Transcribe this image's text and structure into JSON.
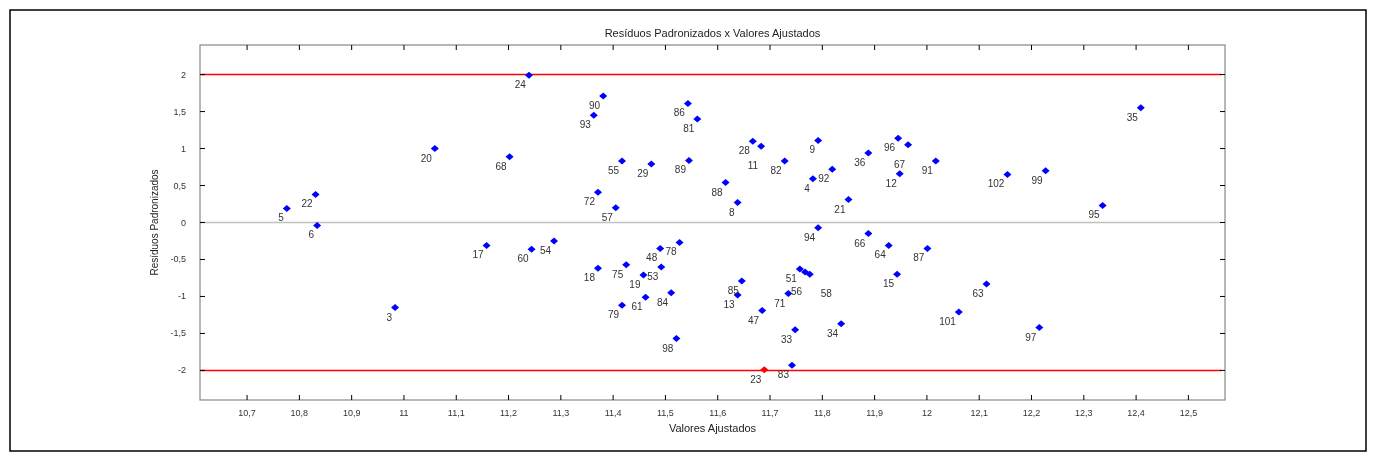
{
  "chart_data": {
    "type": "scatter",
    "title": "Resíduos Padronizados x Valores Ajustados",
    "xlabel": "Valores Ajustados",
    "ylabel": "Resíduos Padronizados",
    "x": [
      10.776,
      10.831,
      10.834,
      10.983,
      11.059,
      11.202,
      11.239,
      11.158,
      11.244,
      11.287,
      11.381,
      11.363,
      11.371,
      11.405,
      11.417,
      11.473,
      11.545,
      11.543,
      11.561,
      11.615,
      11.638,
      11.667,
      11.683,
      11.728,
      11.371,
      11.425,
      11.49,
      11.527,
      11.492,
      11.458,
      11.417,
      11.462,
      11.511,
      11.521,
      11.646,
      11.638,
      11.685,
      11.689,
      11.735,
      11.748,
      11.742,
      11.757,
      11.767,
      11.776,
      11.836,
      11.792,
      11.888,
      11.927,
      11.943,
      12.001,
      12.061,
      11.792,
      11.782,
      11.819,
      11.85,
      11.888,
      11.945,
      11.964,
      11.948,
      12.017,
      12.114,
      12.154,
      12.227,
      12.215,
      12.336,
      12.409
    ],
    "values": [
      0.19,
      0.38,
      -0.04,
      -1.15,
      1.0,
      0.89,
      1.99,
      -0.31,
      -0.36,
      -0.25,
      1.71,
      1.45,
      0.41,
      0.2,
      0.83,
      0.79,
      0.84,
      1.61,
      1.4,
      0.54,
      0.27,
      1.1,
      1.03,
      0.83,
      -0.62,
      -0.57,
      -0.35,
      -0.27,
      -0.6,
      -0.71,
      -1.12,
      -1.01,
      -0.95,
      -1.57,
      -0.79,
      -0.98,
      -1.19,
      -1.99,
      -0.96,
      -1.45,
      -1.93,
      -0.63,
      -0.67,
      -0.7,
      -1.37,
      -0.07,
      -0.15,
      -0.31,
      -0.7,
      -0.35,
      -1.21,
      1.11,
      0.59,
      0.72,
      0.31,
      0.94,
      1.14,
      1.05,
      0.66,
      0.83,
      -0.83,
      0.65,
      0.7,
      -1.42,
      0.23,
      1.55
    ],
    "colors": [
      "#0000ff",
      "#0000ff",
      "#0000ff",
      "#0000ff",
      "#0000ff",
      "#0000ff",
      "#0000ff",
      "#0000ff",
      "#0000ff",
      "#0000ff",
      "#0000ff",
      "#0000ff",
      "#0000ff",
      "#0000ff",
      "#0000ff",
      "#0000ff",
      "#0000ff",
      "#0000ff",
      "#0000ff",
      "#0000ff",
      "#0000ff",
      "#0000ff",
      "#0000ff",
      "#0000ff",
      "#0000ff",
      "#0000ff",
      "#0000ff",
      "#0000ff",
      "#0000ff",
      "#0000ff",
      "#0000ff",
      "#0000ff",
      "#0000ff",
      "#0000ff",
      "#0000ff",
      "#0000ff",
      "#0000ff",
      "#ff0000",
      "#0000ff",
      "#0000ff",
      "#0000ff",
      "#0000ff",
      "#0000ff",
      "#0000ff",
      "#0000ff",
      "#0000ff",
      "#0000ff",
      "#0000ff",
      "#0000ff",
      "#0000ff",
      "#0000ff",
      "#0000ff",
      "#0000ff",
      "#0000ff",
      "#0000ff",
      "#0000ff",
      "#0000ff",
      "#0000ff",
      "#0000ff",
      "#0000ff",
      "#0000ff",
      "#0000ff",
      "#0000ff",
      "#0000ff",
      "#0000ff",
      "#0000ff"
    ],
    "annotations": [
      {
        "text": "5",
        "x": 10.776,
        "y": 0.19
      },
      {
        "text": "22",
        "x": 10.831,
        "y": 0.38
      },
      {
        "text": "6",
        "x": 10.834,
        "y": -0.04
      },
      {
        "text": "3",
        "x": 10.983,
        "y": -1.15
      },
      {
        "text": "20",
        "x": 11.059,
        "y": 1.0
      },
      {
        "text": "68",
        "x": 11.202,
        "y": 0.89
      },
      {
        "text": "24",
        "x": 11.239,
        "y": 1.99
      },
      {
        "text": "17",
        "x": 11.158,
        "y": -0.31
      },
      {
        "text": "60",
        "x": 11.244,
        "y": -0.36
      },
      {
        "text": "54",
        "x": 11.287,
        "y": -0.25
      },
      {
        "text": "90",
        "x": 11.381,
        "y": 1.71
      },
      {
        "text": "93",
        "x": 11.363,
        "y": 1.45
      },
      {
        "text": "72",
        "x": 11.371,
        "y": 0.41
      },
      {
        "text": "57",
        "x": 11.405,
        "y": 0.2
      },
      {
        "text": "55",
        "x": 11.417,
        "y": 0.83
      },
      {
        "text": "29",
        "x": 11.473,
        "y": 0.79
      },
      {
        "text": "89",
        "x": 11.545,
        "y": 0.84
      },
      {
        "text": "86",
        "x": 11.543,
        "y": 1.61
      },
      {
        "text": "81",
        "x": 11.561,
        "y": 1.4
      },
      {
        "text": "88",
        "x": 11.615,
        "y": 0.54
      },
      {
        "text": "8",
        "x": 11.638,
        "y": 0.27
      },
      {
        "text": "28",
        "x": 11.667,
        "y": 1.1
      },
      {
        "text": "11",
        "x": 11.683,
        "y": 1.03
      },
      {
        "text": "82",
        "x": 11.728,
        "y": 0.83
      },
      {
        "text": "18",
        "x": 11.371,
        "y": -0.62
      },
      {
        "text": "75",
        "x": 11.425,
        "y": -0.57
      },
      {
        "text": "48",
        "x": 11.49,
        "y": -0.35
      },
      {
        "text": "78",
        "x": 11.527,
        "y": -0.27
      },
      {
        "text": "53",
        "x": 11.492,
        "y": -0.6
      },
      {
        "text": "19",
        "x": 11.458,
        "y": -0.71
      },
      {
        "text": "79",
        "x": 11.417,
        "y": -1.12
      },
      {
        "text": "61",
        "x": 11.462,
        "y": -1.01
      },
      {
        "text": "84",
        "x": 11.511,
        "y": -0.95
      },
      {
        "text": "98",
        "x": 11.521,
        "y": -1.57
      },
      {
        "text": "85",
        "x": 11.646,
        "y": -0.79
      },
      {
        "text": "13",
        "x": 11.638,
        "y": -0.98
      },
      {
        "text": "47",
        "x": 11.685,
        "y": -1.19
      },
      {
        "text": "23",
        "x": 11.689,
        "y": -1.99
      },
      {
        "text": "71",
        "x": 11.735,
        "y": -0.96
      },
      {
        "text": "33",
        "x": 11.748,
        "y": -1.45
      },
      {
        "text": "83",
        "x": 11.742,
        "y": -1.93
      },
      {
        "text": "51",
        "x": 11.757,
        "y": -0.63
      },
      {
        "text": "56",
        "x": 11.767,
        "y": -0.67
      },
      {
        "text": "58",
        "x": 11.776,
        "y": -0.7
      },
      {
        "text": "34",
        "x": 11.836,
        "y": -1.37
      },
      {
        "text": "94",
        "x": 11.792,
        "y": -0.07
      },
      {
        "text": "66",
        "x": 11.888,
        "y": -0.15
      },
      {
        "text": "64",
        "x": 11.927,
        "y": -0.31
      },
      {
        "text": "15",
        "x": 11.943,
        "y": -0.7
      },
      {
        "text": "87",
        "x": 12.001,
        "y": -0.35
      },
      {
        "text": "101",
        "x": 12.061,
        "y": -1.21
      },
      {
        "text": "9",
        "x": 11.792,
        "y": 1.11
      },
      {
        "text": "4",
        "x": 11.782,
        "y": 0.59
      },
      {
        "text": "92",
        "x": 11.819,
        "y": 0.72
      },
      {
        "text": "21",
        "x": 11.85,
        "y": 0.31
      },
      {
        "text": "36",
        "x": 11.888,
        "y": 0.94
      },
      {
        "text": "96",
        "x": 11.945,
        "y": 1.14
      },
      {
        "text": "67",
        "x": 11.964,
        "y": 1.05
      },
      {
        "text": "12",
        "x": 11.948,
        "y": 0.66
      },
      {
        "text": "91",
        "x": 12.017,
        "y": 0.83
      },
      {
        "text": "63",
        "x": 12.114,
        "y": -0.83
      },
      {
        "text": "102",
        "x": 12.154,
        "y": 0.65
      },
      {
        "text": "99",
        "x": 12.227,
        "y": 0.7
      },
      {
        "text": "97",
        "x": 12.215,
        "y": -1.42
      },
      {
        "text": "95",
        "x": 12.336,
        "y": 0.23
      },
      {
        "text": "35",
        "x": 12.409,
        "y": 1.55
      }
    ],
    "xlim": [
      10.61,
      12.57
    ],
    "xticks": [
      {
        "value": 10.7,
        "label": "10,7"
      },
      {
        "value": 10.8,
        "label": "10,8"
      },
      {
        "value": 10.9,
        "label": "10,9"
      },
      11,
      {
        "value": 11.1,
        "label": "11,1"
      },
      {
        "value": 11.2,
        "label": "11,2"
      },
      {
        "value": 11.3,
        "label": "11,3"
      },
      {
        "value": 11.4,
        "label": "11,4"
      },
      {
        "value": 11.5,
        "label": "11,5"
      },
      {
        "value": 11.6,
        "label": "11,6"
      },
      {
        "value": 11.7,
        "label": "11,7"
      },
      {
        "value": 11.8,
        "label": "11,8"
      },
      {
        "value": 11.9,
        "label": "11,9"
      },
      12,
      {
        "value": 12.1,
        "label": "12,1"
      },
      {
        "value": 12.2,
        "label": "12,2"
      },
      {
        "value": 12.3,
        "label": "12,3"
      },
      {
        "value": 12.4,
        "label": "12,4"
      },
      {
        "value": 12.5,
        "label": "12,5"
      }
    ],
    "ylim": [
      -2.4,
      2.4
    ],
    "yticks": [
      -2,
      {
        "value": -1.5,
        "label": "-1,5"
      },
      -1,
      {
        "value": -0.5,
        "label": "-0,5"
      },
      0,
      {
        "value": 0.5,
        "label": "0,5"
      },
      1,
      {
        "value": 1.5,
        "label": "1,5"
      },
      2
    ],
    "ref_lines": [
      {
        "axis": "y",
        "value": 2,
        "color": "#ff0000"
      },
      {
        "axis": "y",
        "value": -2,
        "color": "#ff0000"
      },
      {
        "axis": "y",
        "value": 0,
        "color": "#c0c0c0"
      }
    ],
    "marker": "diamond",
    "grid": false
  }
}
